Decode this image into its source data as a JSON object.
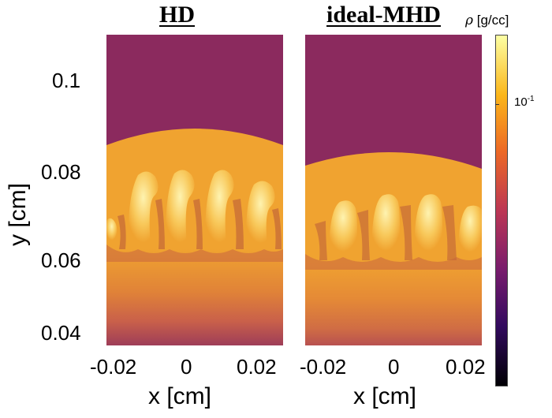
{
  "panels": [
    {
      "title": "HD",
      "x_ticks": [
        "-0.02",
        "0",
        "0.02"
      ]
    },
    {
      "title": "ideal-MHD",
      "x_ticks": [
        "-0.02",
        "0",
        "0.02"
      ]
    }
  ],
  "y_axis": {
    "label": "y [cm]",
    "ticks": [
      "0.1",
      "0.08",
      "0.06",
      "0.04"
    ]
  },
  "x_axis": {
    "label": "x [cm]"
  },
  "colorbar": {
    "label_symbol": "ρ",
    "label_unit": "[g/cc]",
    "tick": "10",
    "tick_exp": "-1",
    "colormap": "inferno",
    "stops": [
      "#000004",
      "#320a5e",
      "#781c6d",
      "#bc3754",
      "#ed6925",
      "#fbb61a",
      "#fcffa4"
    ]
  },
  "colors": {
    "background_low_density": "#8b2a5e",
    "bubble_fill": "#f0a330",
    "finger_core": "#fde68a",
    "lower_gradient_dark": "#9e3d58"
  }
}
